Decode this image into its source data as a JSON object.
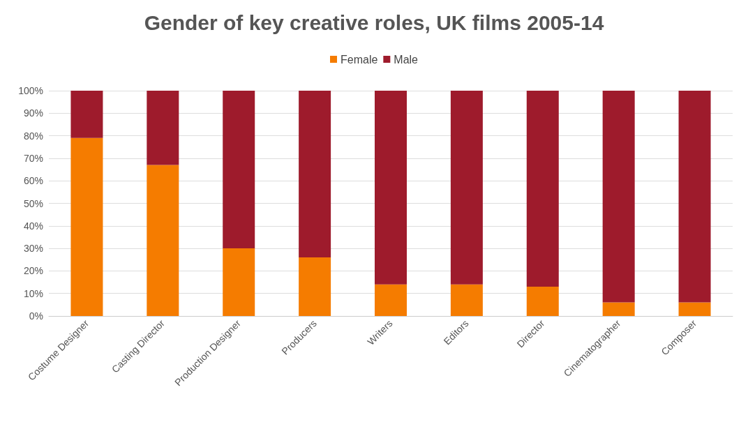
{
  "chart_data": {
    "type": "bar",
    "title": "Gender of key creative roles, UK films 2005-14",
    "categories": [
      "Costume Designer",
      "Casting Director",
      "Production Designer",
      "Producers",
      "Writers",
      "Editors",
      "Director",
      "Cinematographer",
      "Composer"
    ],
    "series": [
      {
        "name": "Female",
        "color": "#f57c00",
        "values": [
          79,
          67,
          30,
          26,
          14,
          14,
          13,
          6,
          6
        ]
      },
      {
        "name": "Male",
        "color": "#9e1b2c",
        "values": [
          21,
          33,
          70,
          74,
          86,
          86,
          87,
          94,
          94
        ]
      }
    ],
    "stacked": true,
    "ylim": [
      0,
      100
    ],
    "yticks": [
      {
        "value": 0,
        "label": "0%"
      },
      {
        "value": 10,
        "label": "10%"
      },
      {
        "value": 20,
        "label": "20%"
      },
      {
        "value": 30,
        "label": "30%"
      },
      {
        "value": 40,
        "label": "40%"
      },
      {
        "value": 50,
        "label": "50%"
      },
      {
        "value": 60,
        "label": "60%"
      },
      {
        "value": 70,
        "label": "70%"
      },
      {
        "value": 80,
        "label": "80%"
      },
      {
        "value": 90,
        "label": "90%"
      },
      {
        "value": 100,
        "label": "100%"
      }
    ],
    "grid": "y",
    "legend": "top"
  }
}
